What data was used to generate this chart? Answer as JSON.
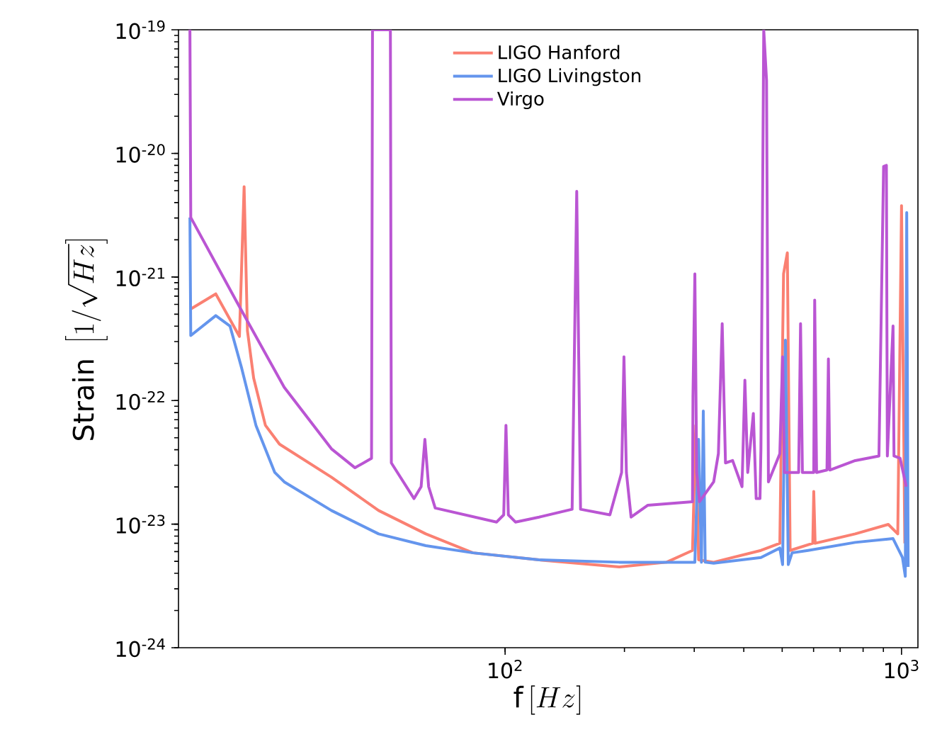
{
  "chart_data": {
    "type": "line",
    "xlabel": "\\mathrm{f}\\,[Hz]",
    "ylabel": "\\mathrm{Strain}\\ \\left[1/\\sqrt{Hz}\\right]",
    "log": "xy",
    "legend": "top",
    "xlim": [
      15,
      1100
    ],
    "ylim": [
      1e-24,
      1e-19
    ],
    "xticks": [
      {
        "value": 100,
        "label": "10$^{2}$"
      },
      {
        "value": 1000,
        "label": "10$^{3}$"
      }
    ],
    "yticks": [
      {
        "value": 1e-24,
        "label": "10$^{-24}$"
      },
      {
        "value": 1e-23,
        "label": "10$^{-23}$"
      },
      {
        "value": 1e-22,
        "label": "10$^{-22}$"
      },
      {
        "value": 1e-21,
        "label": "10$^{-21}$"
      },
      {
        "value": 1e-20,
        "label": "10$^{-20}$"
      },
      {
        "value": 1e-19,
        "label": "10$^{-19}$"
      }
    ],
    "series": [
      {
        "name": "LIGO Hanford",
        "color": "#fa8072",
        "x": [
          16.03,
          18.63,
          21.37,
          21.96,
          22.39,
          23.21,
          24.85,
          26.97,
          36.47,
          47.96,
          63.1,
          82.98,
          121.8,
          194.1,
          255.4,
          297.0,
          302.7,
          307.7,
          335.9,
          441.9,
          493.2,
          504.0,
          515.2,
          523.6,
          597.3,
          600.6,
          605.5,
          764.2,
          926.0,
          978.4,
          1000,
          1019.3
        ],
        "values": [
          5.46e-22,
          7.3e-22,
          3.3e-22,
          5.38e-21,
          3.67e-22,
          1.52e-22,
          6.31e-23,
          4.44e-23,
          2.4e-23,
          1.29e-23,
          8.34e-24,
          5.86e-24,
          5.14e-24,
          4.51e-24,
          4.92e-24,
          6.13e-24,
          6.31e-23,
          5.14e-24,
          4.92e-24,
          6.13e-24,
          7e-24,
          1.06e-21,
          1.57e-21,
          6.13e-24,
          7e-24,
          1.84e-23,
          7e-24,
          8.34e-24,
          9.95e-24,
          8.34e-24,
          3.78e-21,
          7e-24
        ]
      },
      {
        "name": "LIGO Livingston",
        "color": "#6495ed",
        "x": [
          16.03,
          16.11,
          18.63,
          20.23,
          21.66,
          23.52,
          26.24,
          27.72,
          36.47,
          47.96,
          63.1,
          82.98,
          121.8,
          194.1,
          301.1,
          307.7,
          312.8,
          316.2,
          319.7,
          335.9,
          441.9,
          493.2,
          501.2,
          509.5,
          518.0,
          529.5,
          581.1,
          764.2,
          951.9,
          1005.5,
          1022.2,
          1030.6,
          1039.2
        ],
        "values": [
          3.03e-21,
          3.36e-22,
          4.87e-22,
          4.01e-22,
          1.82e-22,
          6.31e-23,
          2.62e-23,
          2.2e-23,
          1.29e-23,
          8.34e-24,
          6.7e-24,
          5.86e-24,
          5.14e-24,
          4.92e-24,
          4.92e-24,
          4.85e-23,
          4.92e-24,
          8.22e-23,
          4.92e-24,
          4.83e-24,
          5.37e-24,
          6.41e-24,
          4.71e-24,
          3.08e-22,
          4.71e-24,
          5.86e-24,
          6.13e-24,
          7.12e-24,
          7.64e-24,
          5.37e-24,
          3.78e-24,
          3.32e-21,
          4.51e-24
        ]
      },
      {
        "name": "Virgo",
        "color": "#ba55d3",
        "x": [
          16.03,
          16.11,
          21.08,
          27.72,
          36.47,
          41.82,
          46.03,
          46.29,
          51.36,
          51.65,
          58.92,
          61.4,
          62.76,
          64.14,
          66.64,
          95.2,
          99.2,
          100.5,
          101.9,
          106.2,
          121.8,
          147.6,
          151.6,
          155.0,
          183.8,
          196.8,
          199.5,
          202.3,
          207.9,
          228.8,
          297.0,
          297.8,
          301.1,
          304.3,
          309.4,
          335.9,
          345.2,
          352.9,
          359.7,
          374.9,
          396.0,
          402.6,
          409.3,
          422.9,
          429.9,
          439.5,
          441.9,
          449.2,
          456.6,
          461.6,
          493.2,
          501.2,
          506.8,
          550.2,
          556.3,
          562.3,
          600.6,
          603.9,
          610.6,
          648.6,
          654.0,
          659.2,
          764.2,
          877.1,
          891.3,
          901.1,
          915.9,
          921.0,
          951.9,
          957.2,
          991.8,
          1027.8
        ],
        "values": [
          1e-19,
          3.03e-21,
          6.22e-22,
          1.28e-22,
          4.07e-23,
          2.86e-23,
          3.41e-23,
          1e-19,
          1e-19,
          3.13e-23,
          1.61e-23,
          2.01e-23,
          4.85e-23,
          2.01e-23,
          1.35e-23,
          1.04e-23,
          1.19e-23,
          6.31e-23,
          1.19e-23,
          1.04e-23,
          1.14e-23,
          1.32e-23,
          4.93e-21,
          1.32e-23,
          1.19e-23,
          2.62e-23,
          2.26e-22,
          2.62e-23,
          1.14e-23,
          1.42e-23,
          1.52e-23,
          1.07e-22,
          1.06e-21,
          2.62e-23,
          1.52e-23,
          2.2e-23,
          3.72e-23,
          4.19e-22,
          3.13e-23,
          3.27e-23,
          2.01e-23,
          1.46e-22,
          2.62e-23,
          7.87e-23,
          1.61e-23,
          1.61e-23,
          4.07e-23,
          1e-19,
          3.9e-20,
          2.2e-23,
          3.72e-23,
          2.26e-22,
          2.62e-23,
          2.62e-23,
          4.19e-22,
          2.62e-23,
          2.62e-23,
          6.5e-22,
          2.62e-23,
          2.74e-23,
          2.17e-22,
          2.74e-23,
          3.27e-23,
          3.56e-23,
          8.85e-22,
          7.85e-21,
          8e-21,
          3.56e-23,
          4.01e-22,
          3.56e-23,
          3.41e-23,
          2.01e-23
        ]
      }
    ]
  }
}
